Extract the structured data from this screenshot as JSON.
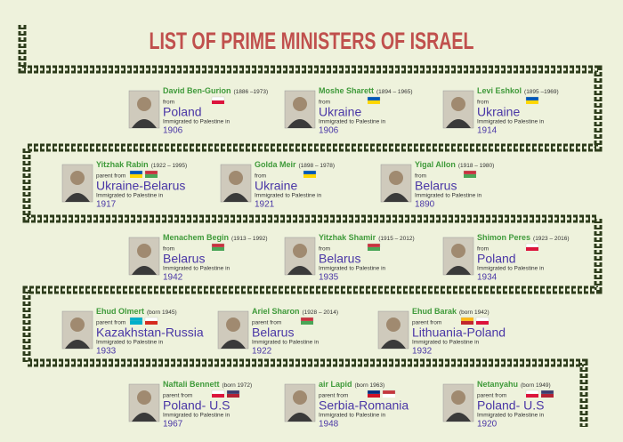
{
  "title": "LIST OF PRIME MINISTERS OF ISRAEL",
  "entries": [
    {
      "name": "David Ben-Gurion",
      "dates": "(1886 –1973)",
      "from": "from",
      "country": "Poland",
      "immigrated": "Immigrated to Palestine in",
      "year": "1906"
    },
    {
      "name": "Moshe Sharett",
      "dates": "(1894 – 1965)",
      "from": "from",
      "country": "Ukraine",
      "immigrated": "Immigrated to Palestine in",
      "year": "1906"
    },
    {
      "name": "Levi Eshkol",
      "dates": "(1895 –1969)",
      "from": "from",
      "country": "Ukraine",
      "immigrated": "Immigrated to Palestine in",
      "year": "1914"
    },
    {
      "name": "Yitzhak Rabin",
      "dates": "(1922 – 1995)",
      "from": "parent from",
      "country": "Ukraine-Belarus",
      "immigrated": "Immigrated to Palestine in",
      "year": "1917"
    },
    {
      "name": "Golda Meir",
      "dates": "(1898 – 1978)",
      "from": "from",
      "country": "Ukraine",
      "immigrated": "Immigrated to Palestine in",
      "year": "1921"
    },
    {
      "name": "Yigal Allon",
      "dates": "(1918 – 1980)",
      "from": "from",
      "country": "Belarus",
      "immigrated": "Immigrated to Palestine in",
      "year": "1890"
    },
    {
      "name": "Menachem Begin",
      "dates": "(1913 – 1992)",
      "from": "from",
      "country": "Belarus",
      "immigrated": "Immigrated to Palestine in",
      "year": "1942"
    },
    {
      "name": "Yitzhak Shamir",
      "dates": "(1915 – 2012)",
      "from": "from",
      "country": "Belarus",
      "immigrated": "Immigrated to Palestine in",
      "year": "1935"
    },
    {
      "name": "Shimon Peres",
      "dates": "(1923 – 2016)",
      "from": "from",
      "country": "Poland",
      "immigrated": "Immigrated to Palestine in",
      "year": "1934"
    },
    {
      "name": "Ehud Olmert",
      "dates": "(born  1945)",
      "from": "parent from",
      "country": "Kazakhstan-Russia",
      "immigrated": "Immigrated to Palestine in",
      "year": "1933"
    },
    {
      "name": "Ariel Sharon",
      "dates": "(1928 – 2014)",
      "from": "parent from",
      "country": "Belarus",
      "immigrated": "Immigrated to Palestine in",
      "year": "1922"
    },
    {
      "name": "Ehud Barak",
      "dates": "(born 1942)",
      "from": "parent from",
      "country": "Lithuania-Poland",
      "immigrated": "Immigrated to Palestine in",
      "year": "1932"
    },
    {
      "name": "Naftali Bennett",
      "dates": "(born 1972)",
      "from": "parent from",
      "country": "Poland- U.S",
      "immigrated": "Immigrated to Palestine in",
      "year": "1967"
    },
    {
      "name": "air Lapid",
      "dates": "(born 1963)",
      "from": "parent from",
      "country": "Serbia-Romania",
      "immigrated": "Immigrated to Palestine in",
      "year": "1948"
    },
    {
      "name": "Netanyahu",
      "dates": "(born 1949)",
      "from": "parent from",
      "country": "Poland- U.S",
      "immigrated": "Immigrated to Palestine in",
      "year": "1920"
    }
  ]
}
